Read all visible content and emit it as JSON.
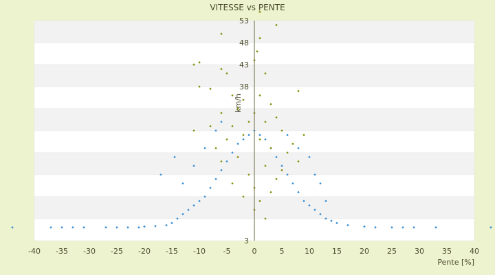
{
  "chart_data": {
    "type": "scatter",
    "title": "VITESSE vs PENTE",
    "xlabel": "Pente [%]",
    "ylabel": "km/h",
    "xlim": [
      -40,
      40
    ],
    "ylim": [
      3,
      53
    ],
    "xticks": [
      -40,
      -35,
      -30,
      -25,
      -20,
      -15,
      -10,
      -5,
      0,
      5,
      10,
      15,
      20,
      25,
      30,
      35,
      40
    ],
    "yticks": [
      3,
      8,
      13,
      18,
      23,
      28,
      33,
      38,
      43,
      48,
      53
    ],
    "ytick_labels_shown": [
      3,
      38,
      43,
      48,
      53
    ],
    "grid": "horizontal banded",
    "legend": "none",
    "series": [
      {
        "color": "#3a8fd6",
        "marker": "diamond",
        "description_points": [
          {
            "x": -44,
            "y": 6
          },
          {
            "x": -37,
            "y": 6
          },
          {
            "x": -35,
            "y": 6
          },
          {
            "x": -33,
            "y": 6
          },
          {
            "x": -31,
            "y": 6
          },
          {
            "x": -27,
            "y": 6
          },
          {
            "x": -25,
            "y": 6
          },
          {
            "x": -23,
            "y": 6
          },
          {
            "x": -21,
            "y": 6
          },
          {
            "x": -20,
            "y": 6.2
          },
          {
            "x": -18,
            "y": 6.3
          },
          {
            "x": -16,
            "y": 6.5
          },
          {
            "x": -15,
            "y": 7
          },
          {
            "x": -14,
            "y": 8
          },
          {
            "x": -13,
            "y": 9
          },
          {
            "x": -12,
            "y": 10
          },
          {
            "x": -11,
            "y": 11
          },
          {
            "x": -10,
            "y": 12
          },
          {
            "x": -9,
            "y": 13
          },
          {
            "x": -8,
            "y": 15
          },
          {
            "x": -7,
            "y": 17
          },
          {
            "x": -6,
            "y": 19
          },
          {
            "x": -5,
            "y": 21
          },
          {
            "x": -4,
            "y": 23
          },
          {
            "x": -3,
            "y": 25
          },
          {
            "x": -2,
            "y": 26
          },
          {
            "x": -1,
            "y": 27
          },
          {
            "x": 0,
            "y": 28
          },
          {
            "x": 1,
            "y": 27
          },
          {
            "x": 2,
            "y": 26
          },
          {
            "x": 3,
            "y": 24
          },
          {
            "x": 4,
            "y": 22
          },
          {
            "x": 5,
            "y": 20
          },
          {
            "x": 6,
            "y": 18
          },
          {
            "x": 7,
            "y": 16
          },
          {
            "x": 8,
            "y": 14
          },
          {
            "x": 9,
            "y": 12
          },
          {
            "x": 10,
            "y": 11
          },
          {
            "x": 11,
            "y": 10
          },
          {
            "x": 12,
            "y": 9
          },
          {
            "x": 13,
            "y": 8
          },
          {
            "x": 14,
            "y": 7.5
          },
          {
            "x": 15,
            "y": 7
          },
          {
            "x": 17,
            "y": 6.5
          },
          {
            "x": 20,
            "y": 6.2
          },
          {
            "x": 22,
            "y": 6
          },
          {
            "x": 25,
            "y": 6
          },
          {
            "x": 27,
            "y": 6
          },
          {
            "x": 29,
            "y": 6
          },
          {
            "x": 33,
            "y": 6
          },
          {
            "x": 43,
            "y": 6
          },
          {
            "x": -14.5,
            "y": 22
          },
          {
            "x": -17,
            "y": 18
          },
          {
            "x": -13,
            "y": 16
          },
          {
            "x": 12,
            "y": 16
          },
          {
            "x": 11,
            "y": 18
          },
          {
            "x": 13,
            "y": 12
          },
          {
            "x": -11,
            "y": 20
          },
          {
            "x": -9,
            "y": 24
          },
          {
            "x": -7,
            "y": 28
          },
          {
            "x": -6,
            "y": 30
          },
          {
            "x": 6,
            "y": 27
          },
          {
            "x": 8,
            "y": 24
          },
          {
            "x": 10,
            "y": 22
          }
        ]
      },
      {
        "color": "#8a8f12",
        "marker": "diamond",
        "description_points": [
          {
            "x": 1,
            "y": 55
          },
          {
            "x": 4,
            "y": 52
          },
          {
            "x": -6,
            "y": 50
          },
          {
            "x": 1,
            "y": 49
          },
          {
            "x": 0.5,
            "y": 46
          },
          {
            "x": -11,
            "y": 43
          },
          {
            "x": -10,
            "y": 43.5
          },
          {
            "x": -6,
            "y": 42
          },
          {
            "x": 0,
            "y": 44
          },
          {
            "x": -5,
            "y": 41
          },
          {
            "x": 2,
            "y": 41
          },
          {
            "x": -10,
            "y": 38
          },
          {
            "x": -8,
            "y": 37.5
          },
          {
            "x": 8,
            "y": 37
          },
          {
            "x": -4,
            "y": 36
          },
          {
            "x": -2,
            "y": 35
          },
          {
            "x": 1,
            "y": 36
          },
          {
            "x": 3,
            "y": 34
          },
          {
            "x": -3,
            "y": 33
          },
          {
            "x": 0,
            "y": 32
          },
          {
            "x": -6,
            "y": 32
          },
          {
            "x": 4,
            "y": 31
          },
          {
            "x": -1,
            "y": 30
          },
          {
            "x": 2,
            "y": 30
          },
          {
            "x": -8,
            "y": 29
          },
          {
            "x": -4,
            "y": 29
          },
          {
            "x": 5,
            "y": 28
          },
          {
            "x": -11,
            "y": 28
          },
          {
            "x": 9,
            "y": 27
          },
          {
            "x": -2,
            "y": 27
          },
          {
            "x": 1,
            "y": 26
          },
          {
            "x": -5,
            "y": 26
          },
          {
            "x": 7,
            "y": 25
          },
          {
            "x": -7,
            "y": 24
          },
          {
            "x": 3,
            "y": 24
          },
          {
            "x": 6,
            "y": 23
          },
          {
            "x": -3,
            "y": 22
          },
          {
            "x": 8,
            "y": 21
          },
          {
            "x": -6,
            "y": 21
          },
          {
            "x": 2,
            "y": 20
          },
          {
            "x": 5,
            "y": 19
          },
          {
            "x": -1,
            "y": 18
          },
          {
            "x": 4,
            "y": 17
          },
          {
            "x": -4,
            "y": 16
          },
          {
            "x": 0,
            "y": 15
          },
          {
            "x": 3,
            "y": 14
          },
          {
            "x": -2,
            "y": 13
          },
          {
            "x": 1,
            "y": 12
          },
          {
            "x": 0,
            "y": 10
          },
          {
            "x": 2,
            "y": 8
          }
        ]
      }
    ]
  }
}
